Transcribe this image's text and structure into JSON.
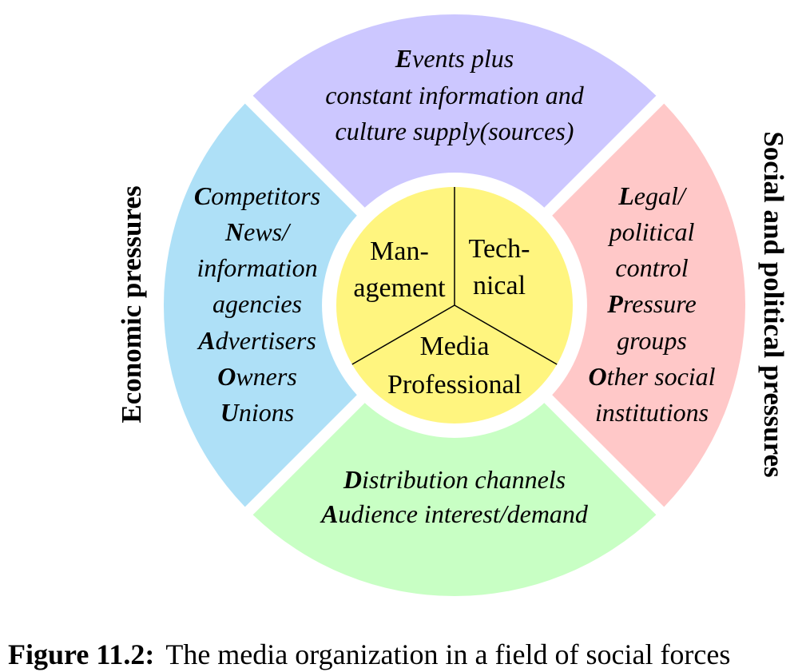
{
  "colors": {
    "top": "#ccc7ff",
    "left": "#aee0f7",
    "right": "#ffc8c8",
    "bottom": "#c8ffc4",
    "center": "#fff57f",
    "center_stroke": "#000000",
    "text": "#000000"
  },
  "segments": {
    "top": {
      "lines": [
        {
          "initial": "E",
          "rest": "vents plus"
        },
        {
          "initial": "",
          "rest": "constant information and"
        },
        {
          "initial": "",
          "rest": "culture supply(sources)"
        }
      ]
    },
    "left": {
      "lines": [
        {
          "initial": "C",
          "rest": "ompetitors"
        },
        {
          "initial": "N",
          "rest": "ews/"
        },
        {
          "initial": "",
          "rest": "information"
        },
        {
          "initial": "",
          "rest": "agencies"
        },
        {
          "initial": "A",
          "rest": "dvertisers"
        },
        {
          "initial": "O",
          "rest": "wners"
        },
        {
          "initial": "U",
          "rest": "nions"
        }
      ]
    },
    "right": {
      "lines": [
        {
          "initial": "L",
          "rest": "egal/"
        },
        {
          "initial": "",
          "rest": "political"
        },
        {
          "initial": "",
          "rest": "control"
        },
        {
          "initial": "P",
          "rest": "ressure"
        },
        {
          "initial": "",
          "rest": "groups"
        },
        {
          "initial": "O",
          "rest": "ther social"
        },
        {
          "initial": "",
          "rest": "institutions"
        }
      ]
    },
    "bottom": {
      "lines": [
        {
          "initial": "D",
          "rest": "istribution channels"
        },
        {
          "initial": "A",
          "rest": "udience interest/demand"
        }
      ]
    }
  },
  "center": {
    "management": [
      "Man-",
      "agement"
    ],
    "technical": [
      "Tech-",
      "nical"
    ],
    "professional": [
      "Media",
      "Professional"
    ]
  },
  "side_labels": {
    "left": "Economic pressures",
    "right": "Social and political pressures"
  },
  "caption": {
    "label": "Figure 11.2:",
    "text": "The media organization in a field of social forces"
  }
}
